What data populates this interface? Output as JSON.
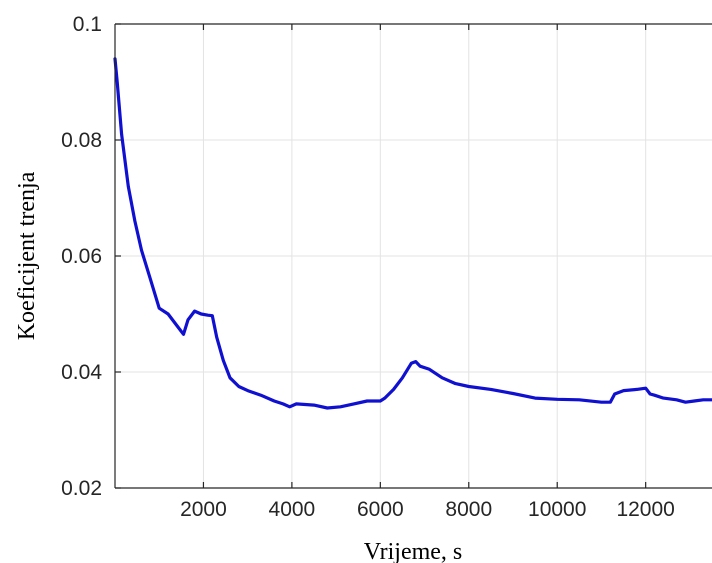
{
  "chart_data": {
    "type": "line",
    "title": "",
    "xlabel": "Vrijeme, s",
    "ylabel": "Koeficijent trenja",
    "xlim": [
      0,
      13500
    ],
    "ylim": [
      0.02,
      0.1
    ],
    "x_ticks": [
      2000,
      4000,
      6000,
      8000,
      10000,
      12000
    ],
    "x_tick_labels": [
      "2000",
      "4000",
      "6000",
      "8000",
      "10000",
      "12000"
    ],
    "y_ticks": [
      0.02,
      0.04,
      0.06,
      0.08,
      0.1
    ],
    "y_tick_labels": [
      "0.02",
      "0.04",
      "0.06",
      "0.08",
      "0.1"
    ],
    "grid": true,
    "series": [
      {
        "color": "#1010d0",
        "x": [
          0,
          50,
          150,
          300,
          450,
          600,
          800,
          1000,
          1200,
          1400,
          1550,
          1650,
          1800,
          1950,
          2100,
          2200,
          2300,
          2450,
          2600,
          2800,
          3000,
          3300,
          3600,
          3800,
          3950,
          4100,
          4300,
          4500,
          4800,
          5100,
          5400,
          5700,
          6000,
          6100,
          6300,
          6500,
          6700,
          6800,
          6900,
          7100,
          7400,
          7700,
          8000,
          8500,
          9000,
          9500,
          10000,
          10500,
          11000,
          11200,
          11300,
          11500,
          11800,
          12000,
          12100,
          12200,
          12400,
          12700,
          12900,
          13100,
          13300,
          13500
        ],
        "y": [
          0.094,
          0.09,
          0.081,
          0.072,
          0.066,
          0.061,
          0.056,
          0.051,
          0.05,
          0.048,
          0.0465,
          0.049,
          0.0505,
          0.05,
          0.0498,
          0.0497,
          0.046,
          0.042,
          0.039,
          0.0375,
          0.0368,
          0.036,
          0.035,
          0.0345,
          0.034,
          0.0345,
          0.0344,
          0.0343,
          0.0338,
          0.034,
          0.0345,
          0.035,
          0.035,
          0.0355,
          0.037,
          0.039,
          0.0415,
          0.0418,
          0.041,
          0.0405,
          0.039,
          0.038,
          0.0375,
          0.037,
          0.0363,
          0.0355,
          0.0353,
          0.0352,
          0.0348,
          0.0348,
          0.0362,
          0.0368,
          0.037,
          0.0372,
          0.0362,
          0.036,
          0.0355,
          0.0352,
          0.0348,
          0.035,
          0.0352,
          0.0352
        ]
      }
    ]
  }
}
